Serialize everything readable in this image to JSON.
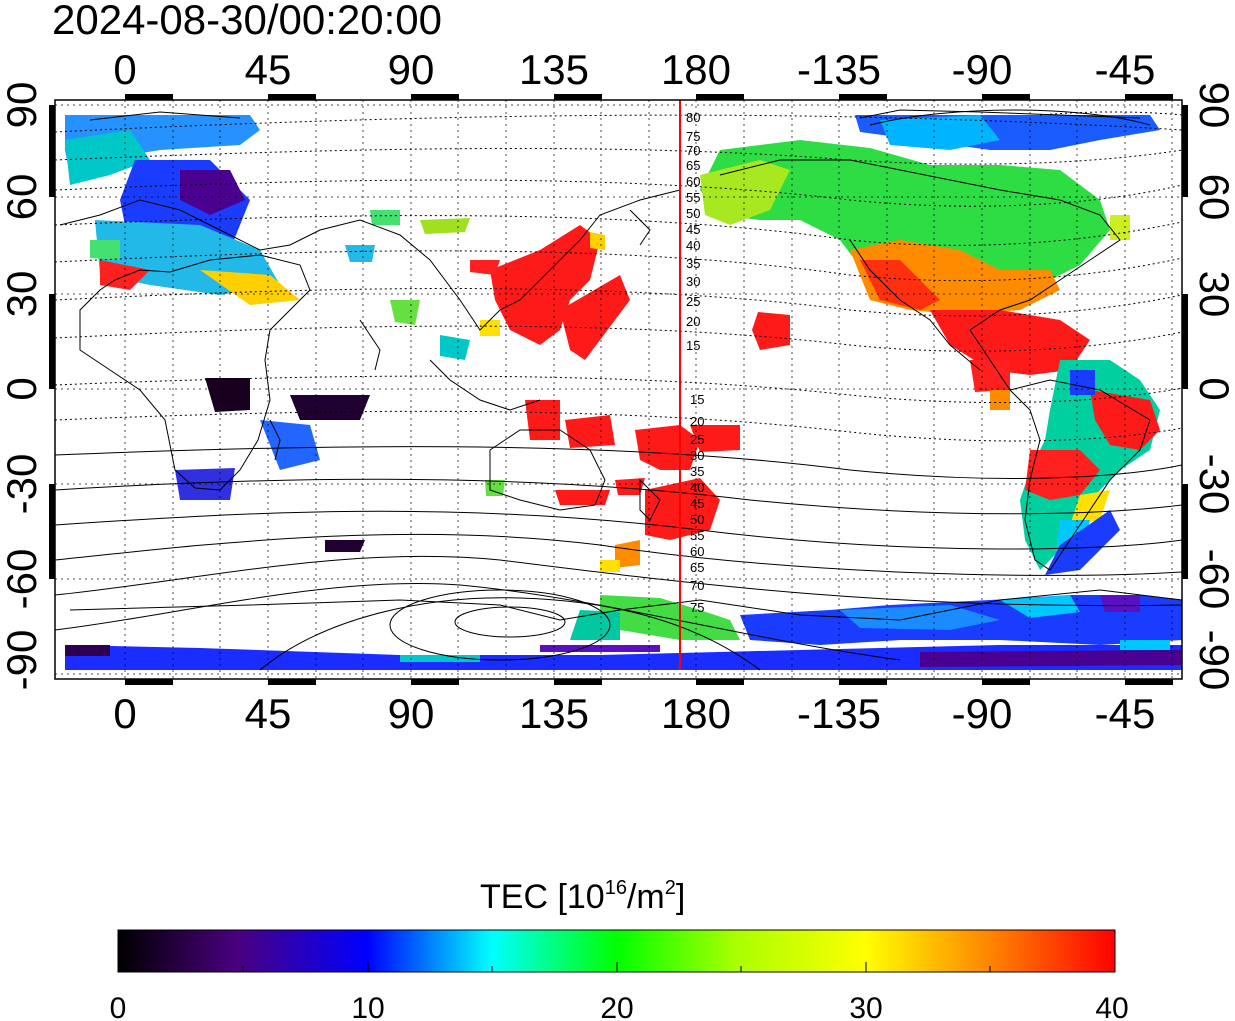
{
  "timestamp": "2024-08-30/00:20:00",
  "map": {
    "top_lon_labels": [
      "0",
      "45",
      "90",
      "135",
      "180",
      "-135",
      "-90",
      "-45"
    ],
    "bottom_lon_labels": [
      "0",
      "45",
      "90",
      "135",
      "180",
      "-135",
      "-90",
      "-45"
    ],
    "left_lat_labels": [
      "90",
      "60",
      "30",
      "0",
      "-30",
      "-60",
      "-90"
    ],
    "right_lat_labels": [
      "90",
      "60",
      "30",
      "0",
      "-30",
      "-60",
      "-90"
    ],
    "terminator_longitude": 175,
    "terminator_color": "#ff0000",
    "contour_labels_north": [
      "80",
      "75",
      "70",
      "65",
      "60",
      "55",
      "50",
      "45",
      "40",
      "35",
      "30",
      "25",
      "20",
      "15"
    ],
    "contour_labels_south": [
      "15",
      "20",
      "25",
      "30",
      "35",
      "40",
      "45",
      "50",
      "55",
      "60",
      "65",
      "70",
      "75"
    ]
  },
  "colorbar": {
    "title_prefix": "TEC  [10",
    "title_exp": "16",
    "title_mid": "/m",
    "title_exp2": "2",
    "title_suffix": "]",
    "min": 0,
    "max": 40,
    "tick_labels": [
      "0",
      "10",
      "20",
      "30",
      "40"
    ],
    "colors": [
      "#000000",
      "#4a0080",
      "#0000ff",
      "#00ffff",
      "#00ff00",
      "#ffff00",
      "#ff8000",
      "#ff0000"
    ]
  }
}
